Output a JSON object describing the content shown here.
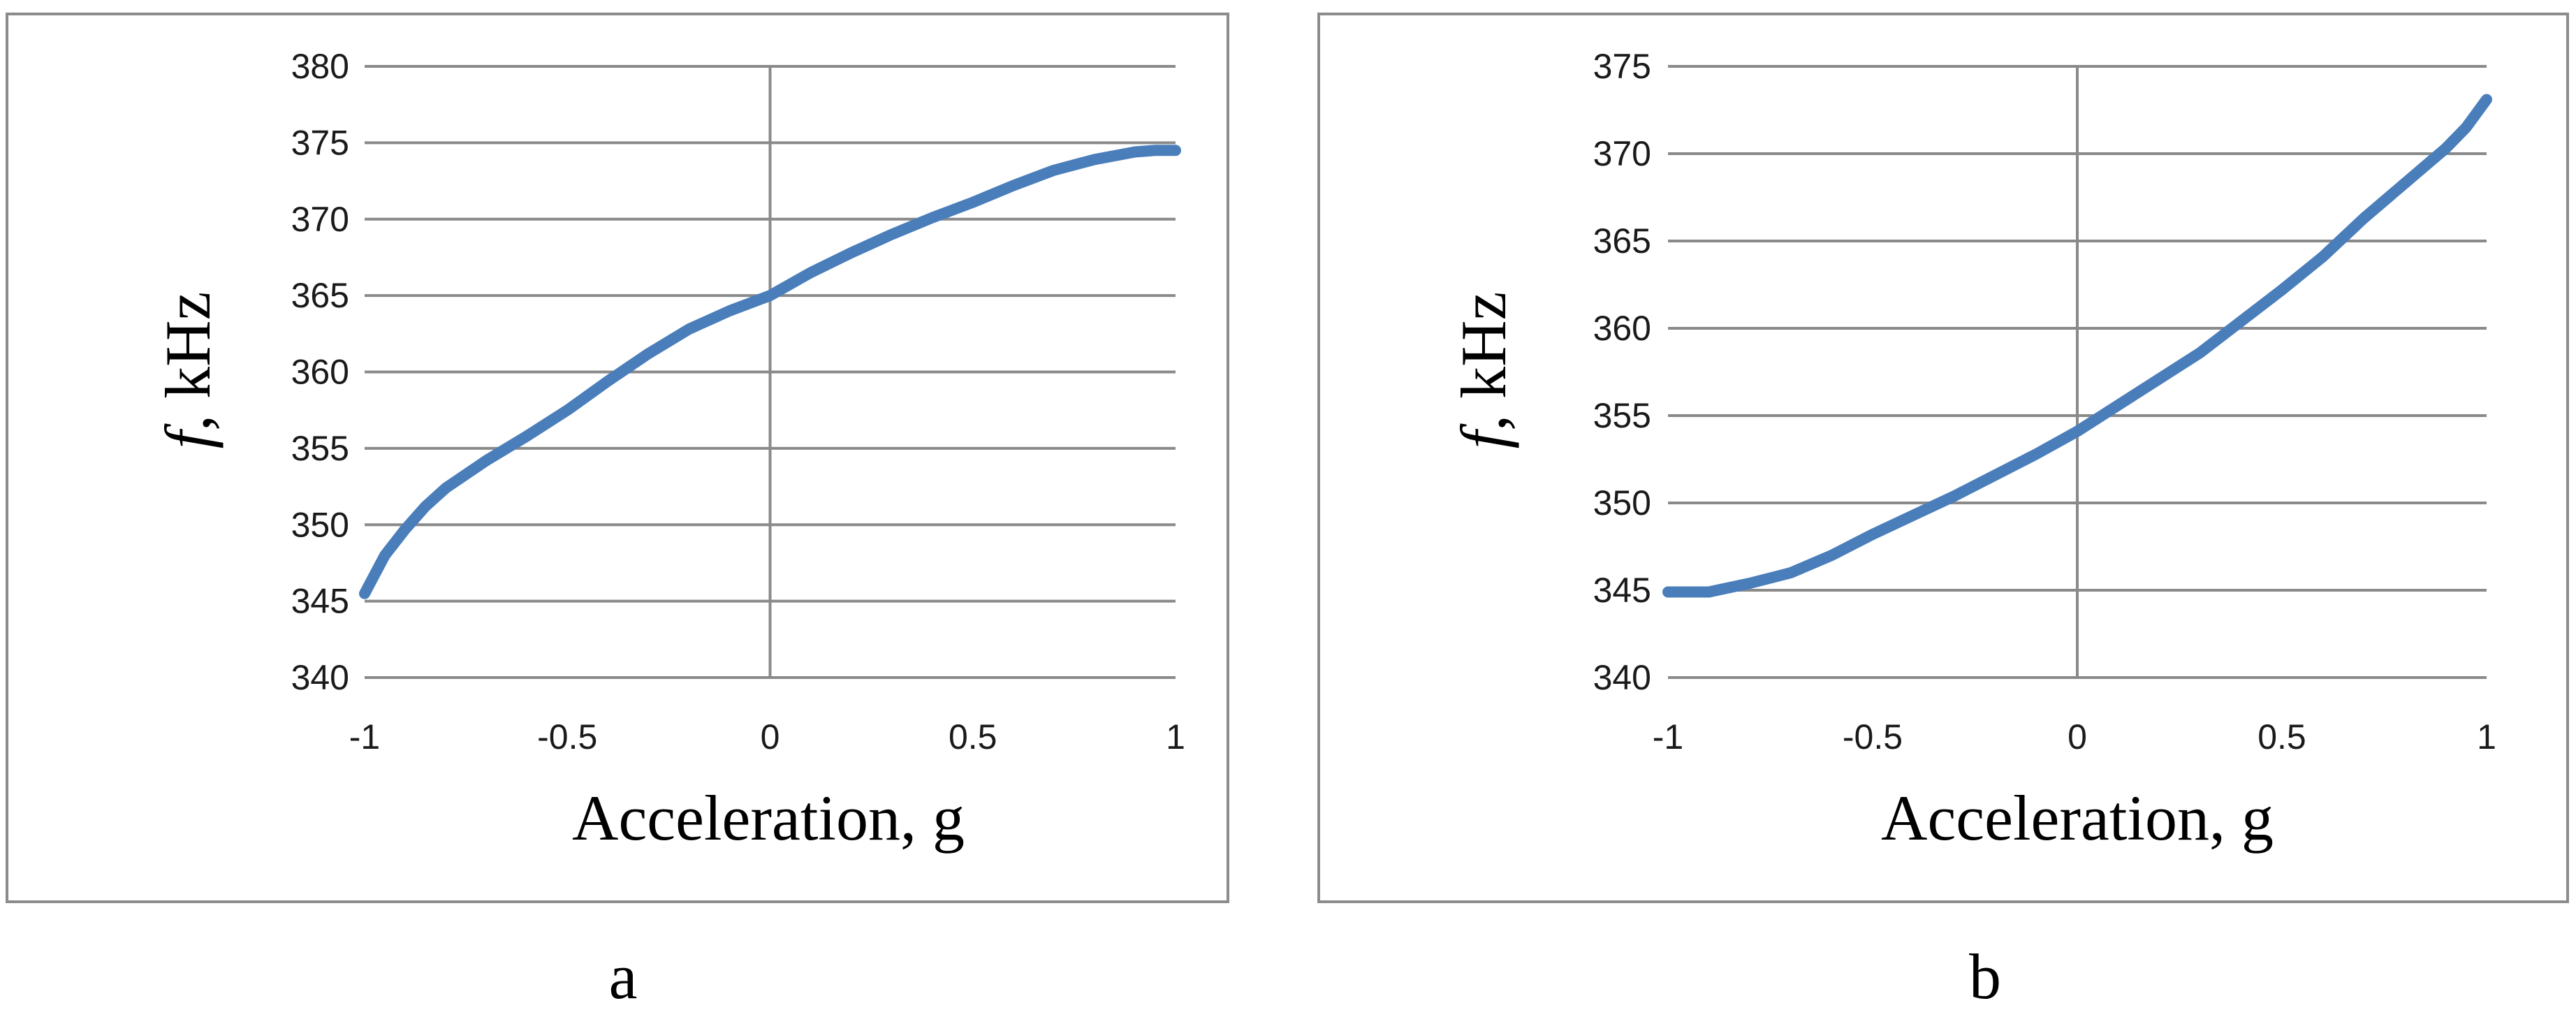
{
  "chart_data": [
    {
      "type": "line",
      "panel_label": "a",
      "xlabel": "Acceleration, g",
      "ylabel_symbol": "f",
      "ylabel_unit": ", kHz",
      "xlim": [
        -1,
        1
      ],
      "ylim": [
        340,
        380
      ],
      "x_ticks": [
        -1,
        -0.5,
        0,
        0.5,
        1
      ],
      "x_tick_labels": [
        "-1",
        "-0.5",
        "0",
        "0.5",
        "1"
      ],
      "y_ticks": [
        340,
        345,
        350,
        355,
        360,
        365,
        370,
        375,
        380
      ],
      "y_tick_labels": [
        "340",
        "345",
        "350",
        "355",
        "360",
        "365",
        "370",
        "375",
        "380"
      ],
      "grid": "horizontal",
      "line_color": "#4a7ebb",
      "series": [
        {
          "x": [
            -1.0,
            -0.95,
            -0.9,
            -0.85,
            -0.8,
            -0.7,
            -0.6,
            -0.5,
            -0.4,
            -0.3,
            -0.2,
            -0.1,
            0.0,
            0.1,
            0.2,
            0.3,
            0.4,
            0.5,
            0.6,
            0.7,
            0.8,
            0.9,
            0.95,
            1.0
          ],
          "y": [
            345.5,
            348.0,
            349.7,
            351.2,
            352.4,
            354.2,
            355.8,
            357.5,
            359.4,
            361.2,
            362.8,
            364.0,
            365.0,
            366.5,
            367.8,
            369.0,
            370.1,
            371.1,
            372.2,
            373.2,
            373.9,
            374.4,
            374.5,
            374.5
          ]
        }
      ]
    },
    {
      "type": "line",
      "panel_label": "b",
      "xlabel": "Acceleration, g",
      "ylabel_symbol": "f",
      "ylabel_unit": ", kHz",
      "xlim": [
        -1,
        1
      ],
      "ylim": [
        340,
        375
      ],
      "x_ticks": [
        -1,
        -0.5,
        0,
        0.5,
        1
      ],
      "x_tick_labels": [
        "-1",
        "-0.5",
        "0",
        "0.5",
        "1"
      ],
      "y_ticks": [
        340,
        345,
        350,
        355,
        360,
        365,
        370,
        375
      ],
      "y_tick_labels": [
        "340",
        "345",
        "350",
        "355",
        "360",
        "365",
        "370",
        "375"
      ],
      "grid": "horizontal",
      "line_color": "#4a7ebb",
      "series": [
        {
          "x": [
            -1.0,
            -0.9,
            -0.8,
            -0.7,
            -0.6,
            -0.5,
            -0.4,
            -0.3,
            -0.2,
            -0.1,
            0.0,
            0.1,
            0.2,
            0.3,
            0.4,
            0.5,
            0.6,
            0.7,
            0.8,
            0.9,
            0.95,
            1.0
          ],
          "y": [
            344.9,
            344.9,
            345.4,
            346.0,
            347.0,
            348.2,
            349.3,
            350.4,
            351.6,
            352.8,
            354.1,
            355.6,
            357.1,
            358.6,
            360.4,
            362.2,
            364.1,
            366.3,
            368.3,
            370.3,
            371.5,
            373.1
          ]
        }
      ]
    }
  ]
}
